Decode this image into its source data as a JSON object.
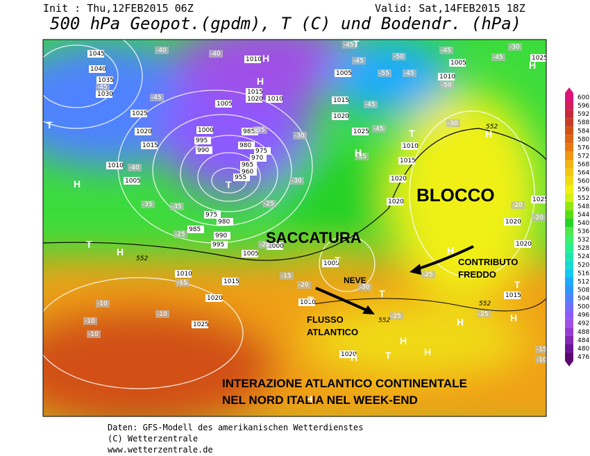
{
  "header": {
    "init": "Init : Thu,12FEB2015 06Z",
    "valid": "Valid: Sat,14FEB2015 18Z",
    "title": "500 hPa Geopot.(gpdm), T (C) und Bodendr. (hPa)"
  },
  "annotations": {
    "blocco": "BLOCCO",
    "saccatura": "SACCATURA",
    "contributo": [
      "CONTRIBUTO",
      "FREDDO"
    ],
    "neve": "NEVE",
    "flusso": [
      "FLUSSO",
      "ATLANTICO"
    ],
    "interazione": [
      "INTERAZIONE ATLANTICO CONTINENTALE",
      "NEL NORD ITALIA NEL WEEK-END"
    ]
  },
  "map_labels": {
    "isobars": [
      "1045",
      "1040",
      "1035",
      "1030",
      "1025",
      "1020",
      "1015",
      "1010",
      "1005",
      "1000",
      "995",
      "990",
      "985",
      "980",
      "975",
      "970",
      "965",
      "960",
      "955",
      "975",
      "980",
      "985",
      "990",
      "995",
      "1000",
      "1005",
      "1010",
      "1015",
      "1020",
      "1025",
      "1010",
      "1015",
      "1020",
      "1010",
      "1005",
      "1005",
      "1010",
      "1005",
      "1015",
      "1020",
      "1025",
      "1010",
      "1015",
      "1020",
      "1020",
      "1025",
      "1020",
      "1020",
      "1015",
      "1005",
      "1010",
      "1020",
      "1025"
    ],
    "temperatures": [
      "-45",
      "-45",
      "-50",
      "-55",
      "-45",
      "-45",
      "-45",
      "-50",
      "-45",
      "-45",
      "-40",
      "-45",
      "-45",
      "-40",
      "-40",
      "-35",
      "-35",
      "-35",
      "-25",
      "-30",
      "-30",
      "-25",
      "-20",
      "-30",
      "-35",
      "-30",
      "-20",
      "-15",
      "-15",
      "-10",
      "-10",
      "-10",
      "-10",
      "-20",
      "-25",
      "-25",
      "-15",
      "-10",
      "-30",
      "-25",
      "-20"
    ],
    "centers": [
      "H",
      "H",
      "T",
      "T",
      "H",
      "T",
      "T",
      "H",
      "H",
      "T",
      "H",
      "T",
      "T",
      "H",
      "H",
      "T",
      "H",
      "H",
      "H",
      "T",
      "H",
      "H",
      "T",
      "H"
    ],
    "contours": [
      "552",
      "552",
      "552",
      "552"
    ]
  },
  "colorbar": {
    "values": [
      600,
      596,
      592,
      588,
      584,
      580,
      576,
      572,
      568,
      564,
      560,
      556,
      552,
      548,
      544,
      540,
      536,
      532,
      528,
      524,
      520,
      516,
      512,
      508,
      504,
      500,
      496,
      492,
      488,
      484,
      480,
      476
    ],
    "colors": [
      "#dc1478",
      "#d21e5a",
      "#c8283c",
      "#c83c28",
      "#d25014",
      "#dc6414",
      "#e67814",
      "#f09614",
      "#f0b414",
      "#f0c814",
      "#f0dc14",
      "#f0f014",
      "#d2f014",
      "#96e614",
      "#5adc14",
      "#28d228",
      "#50e650",
      "#3cf06e",
      "#28f08c",
      "#1ee6aa",
      "#14dcd2",
      "#14c8f0",
      "#1eaaff",
      "#3296ff",
      "#5082ff",
      "#6e6eff",
      "#8c5aff",
      "#a050e6",
      "#963cd2",
      "#8228b4",
      "#6e1496",
      "#5a0a6e"
    ]
  },
  "footer": [
    "Daten: GFS-Modell des amerikanischen Wetterdienstes",
    "(C) Wetterzentrale",
    "www.wetterzentrale.de"
  ]
}
